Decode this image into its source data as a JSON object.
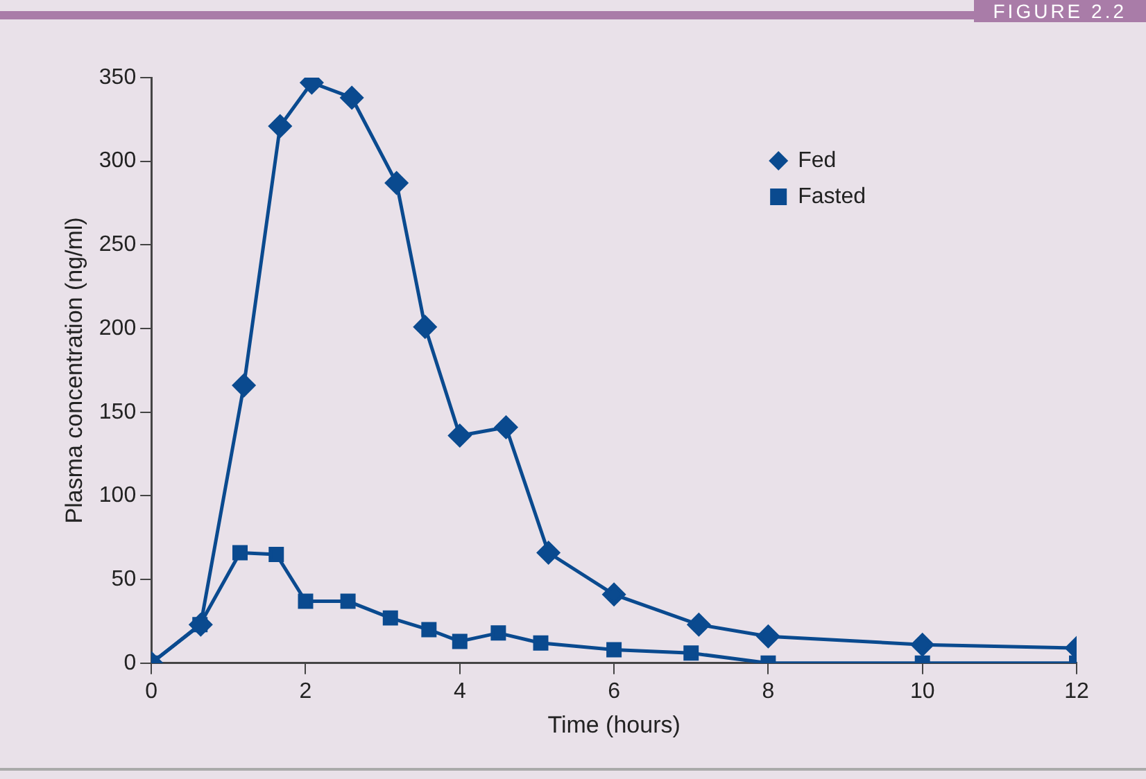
{
  "chart_data": {
    "type": "line",
    "xlabel": "Time (hours)",
    "ylabel": "Plasma concentration (ng/ml)",
    "annotations": [
      "FIGURE 2.2"
    ],
    "xlim": [
      0,
      12
    ],
    "xticks": [
      0,
      2,
      4,
      6,
      8,
      10,
      12
    ],
    "ylim": [
      0,
      350
    ],
    "yticks": [
      0,
      50,
      100,
      150,
      200,
      250,
      300,
      350
    ],
    "grid": false,
    "legend": "top right",
    "series": [
      {
        "name": "Fed",
        "color": "#0a4a8f",
        "marker": "diamond",
        "x": [
          0,
          0.64,
          1.2,
          1.67,
          2.08,
          2.6,
          3.18,
          3.55,
          4,
          4.6,
          5.15,
          6,
          7.1,
          8,
          10,
          12
        ],
        "values": [
          0,
          23,
          166,
          321,
          347,
          338,
          287,
          201,
          136,
          141,
          66,
          41,
          23,
          16,
          11,
          9
        ]
      },
      {
        "name": "Fasted",
        "color": "#0a4a8f",
        "marker": "square",
        "x": [
          0,
          0.63,
          1.15,
          1.62,
          2,
          2.55,
          3.1,
          3.6,
          4,
          4.5,
          5.05,
          6,
          7,
          8,
          10,
          12
        ],
        "values": [
          0,
          23,
          66,
          65,
          37,
          37,
          27,
          20,
          13,
          18,
          12,
          8,
          6,
          0,
          0,
          0
        ]
      }
    ]
  }
}
